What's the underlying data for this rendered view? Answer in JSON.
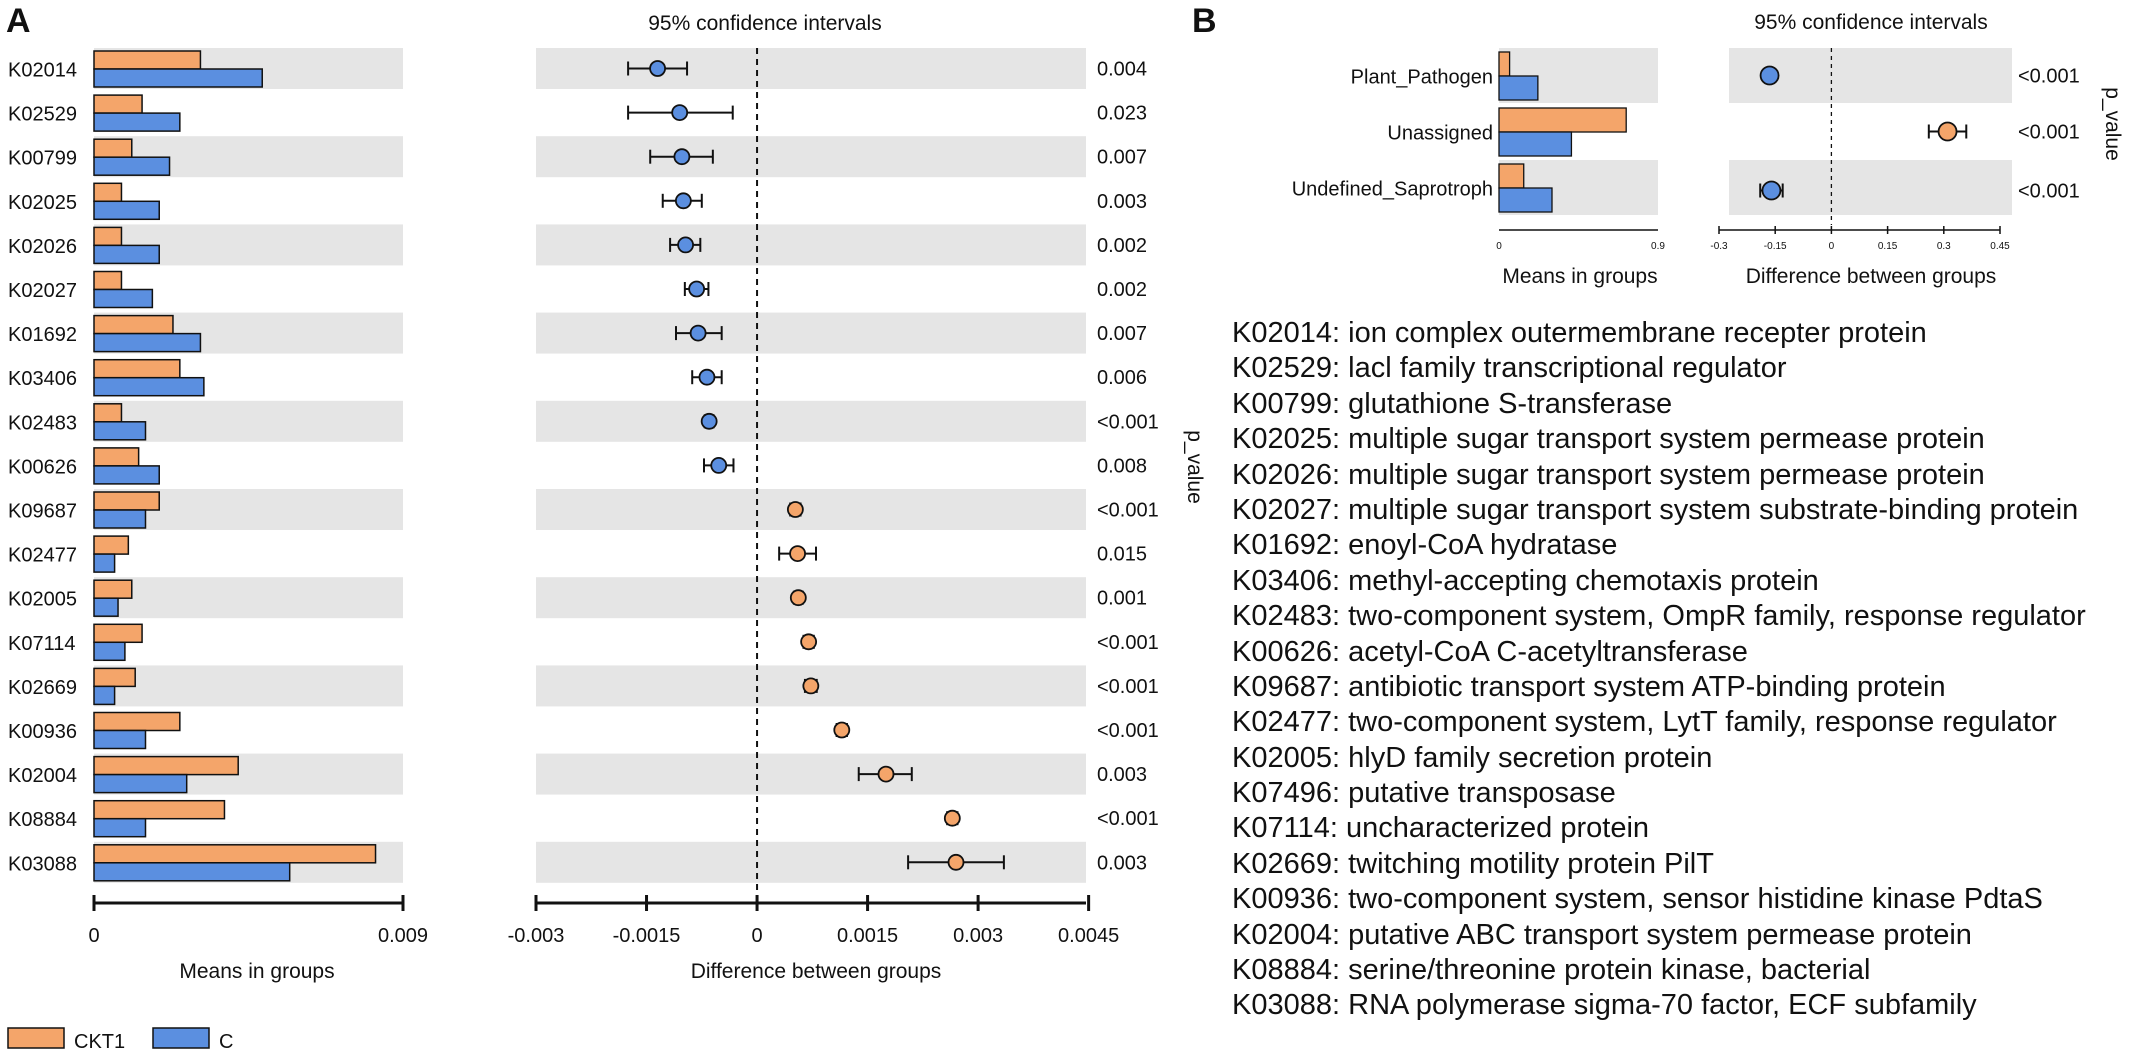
{
  "colors": {
    "ckt1": "#f4a56a",
    "c": "#5b8fe0",
    "band": "#e5e5e5",
    "stroke": "#111111"
  },
  "chart_data": [
    {
      "panel": "A",
      "panel_label": "A",
      "type": "bar",
      "title": "",
      "xlabel": "Means in groups",
      "ylabel": "",
      "xlim": [
        0,
        0.009
      ],
      "xticks": [
        "0",
        "0.009"
      ],
      "categories": [
        "K02014",
        "K02529",
        "K00799",
        "K02025",
        "K02026",
        "K02027",
        "K01692",
        "K03406",
        "K02483",
        "K00626",
        "K09687",
        "K02477",
        "K02005",
        "K07114",
        "K02669",
        "K00936",
        "K02004",
        "K08884",
        "K03088"
      ],
      "series": [
        {
          "name": "CKT1",
          "values": [
            0.0031,
            0.0014,
            0.0011,
            0.0008,
            0.0008,
            0.0008,
            0.0023,
            0.0025,
            0.0008,
            0.0013,
            0.0019,
            0.001,
            0.0011,
            0.0014,
            0.0012,
            0.0025,
            0.0042,
            0.0038,
            0.0082
          ]
        },
        {
          "name": "C",
          "values": [
            0.0049,
            0.0025,
            0.0022,
            0.0019,
            0.0019,
            0.0017,
            0.0031,
            0.0032,
            0.0015,
            0.0019,
            0.0015,
            0.0006,
            0.0007,
            0.0009,
            0.0006,
            0.0015,
            0.0027,
            0.0015,
            0.0057
          ]
        }
      ],
      "legend": [
        "CKT1",
        "C"
      ]
    },
    {
      "panel": "A",
      "type": "scatter",
      "title": "95% confidence intervals",
      "xlabel": "Difference between groups",
      "xlim": [
        -0.003,
        0.0046
      ],
      "xticks": [
        "-0.003",
        "-0.0015",
        "0",
        "0.0015",
        "0.003",
        "0.0045"
      ],
      "p_label": "p_value",
      "points": [
        {
          "id": "K02014",
          "diff": -0.00135,
          "low": -0.00175,
          "high": -0.00095,
          "group": "C",
          "p": "0.004"
        },
        {
          "id": "K02529",
          "diff": -0.00105,
          "low": -0.00175,
          "high": -0.00033,
          "group": "C",
          "p": "0.023"
        },
        {
          "id": "K00799",
          "diff": -0.00102,
          "low": -0.00145,
          "high": -0.0006,
          "group": "C",
          "p": "0.007"
        },
        {
          "id": "K02025",
          "diff": -0.001,
          "low": -0.00128,
          "high": -0.00075,
          "group": "C",
          "p": "0.003"
        },
        {
          "id": "K02026",
          "diff": -0.00097,
          "low": -0.00118,
          "high": -0.00077,
          "group": "C",
          "p": "0.002"
        },
        {
          "id": "K02027",
          "diff": -0.00082,
          "low": -0.00098,
          "high": -0.00066,
          "group": "C",
          "p": "0.002"
        },
        {
          "id": "K01692",
          "diff": -0.0008,
          "low": -0.0011,
          "high": -0.00048,
          "group": "C",
          "p": "0.007"
        },
        {
          "id": "K03406",
          "diff": -0.00068,
          "low": -0.00088,
          "high": -0.00048,
          "group": "C",
          "p": "0.006"
        },
        {
          "id": "K02483",
          "diff": -0.00065,
          "low": -0.00071,
          "high": -0.00059,
          "group": "C",
          "p": "<0.001"
        },
        {
          "id": "K00626",
          "diff": -0.00052,
          "low": -0.00072,
          "high": -0.00032,
          "group": "C",
          "p": "0.008"
        },
        {
          "id": "K09687",
          "diff": 0.00052,
          "low": 0.00045,
          "high": 0.00059,
          "group": "CKT1",
          "p": "<0.001"
        },
        {
          "id": "K02477",
          "diff": 0.00055,
          "low": 0.0003,
          "high": 0.0008,
          "group": "CKT1",
          "p": "0.015"
        },
        {
          "id": "K02005",
          "diff": 0.00056,
          "low": 0.0005,
          "high": 0.00062,
          "group": "CKT1",
          "p": "0.001"
        },
        {
          "id": "K07114",
          "diff": 0.0007,
          "low": 0.00063,
          "high": 0.00077,
          "group": "CKT1",
          "p": "<0.001"
        },
        {
          "id": "K02669",
          "diff": 0.00073,
          "low": 0.00065,
          "high": 0.00081,
          "group": "CKT1",
          "p": "<0.001"
        },
        {
          "id": "K00936",
          "diff": 0.00115,
          "low": 0.00108,
          "high": 0.00122,
          "group": "CKT1",
          "p": "<0.001"
        },
        {
          "id": "K02004",
          "diff": 0.00175,
          "low": 0.00138,
          "high": 0.0021,
          "group": "CKT1",
          "p": "0.003"
        },
        {
          "id": "K08884",
          "diff": 0.00265,
          "low": 0.00258,
          "high": 0.00272,
          "group": "CKT1",
          "p": "<0.001"
        },
        {
          "id": "K03088",
          "diff": 0.0027,
          "low": 0.00205,
          "high": 0.00335,
          "group": "CKT1",
          "p": "0.003"
        }
      ]
    },
    {
      "panel": "B",
      "panel_label": "B",
      "type": "bar",
      "title": "",
      "xlabel": "Means in groups",
      "xlim": [
        0,
        0.9
      ],
      "xticks": [
        "0",
        "0.9"
      ],
      "categories": [
        "Plant_Pathogen",
        "Unassigned",
        "Undefined_Saprotroph"
      ],
      "series": [
        {
          "name": "CKT1",
          "values": [
            0.06,
            0.72,
            0.14
          ]
        },
        {
          "name": "C",
          "values": [
            0.22,
            0.41,
            0.3
          ]
        }
      ]
    },
    {
      "panel": "B",
      "type": "scatter",
      "title": "95% confidence intervals",
      "xlabel": "Difference between groups",
      "xlim": [
        -0.3,
        0.45
      ],
      "xticks": [
        "-0.3",
        "-0.15",
        "0",
        "0.15",
        "0.3",
        "0.45"
      ],
      "p_label": "p_value",
      "points": [
        {
          "id": "Plant_Pathogen",
          "diff": -0.165,
          "low": -0.175,
          "high": -0.155,
          "group": "C",
          "p": "<0.001"
        },
        {
          "id": "Unassigned",
          "diff": 0.31,
          "low": 0.26,
          "high": 0.36,
          "group": "CKT1",
          "p": "<0.001"
        },
        {
          "id": "Undefined_Saprotroph",
          "diff": -0.16,
          "low": -0.19,
          "high": -0.13,
          "group": "C",
          "p": "<0.001"
        }
      ]
    }
  ],
  "descriptions": [
    {
      "id": "K02014",
      "text": "ion complex outermembrane recepter protein"
    },
    {
      "id": "K02529",
      "text": "lacl family transcriptional regulator"
    },
    {
      "id": "K00799",
      "text": "glutathione S-transferase"
    },
    {
      "id": "K02025",
      "text": "multiple sugar transport system permease protein"
    },
    {
      "id": "K02026",
      "text": "multiple sugar transport system permease protein"
    },
    {
      "id": "K02027",
      "text": "multiple sugar transport system substrate-binding protein"
    },
    {
      "id": "K01692",
      "text": "enoyl-CoA hydratase"
    },
    {
      "id": "K03406",
      "text": "methyl-accepting chemotaxis protein"
    },
    {
      "id": "K02483",
      "text": "two-component system, OmpR family, response regulator"
    },
    {
      "id": "K00626",
      "text": "acetyl-CoA C-acetyltransferase"
    },
    {
      "id": "K09687",
      "text": "antibiotic transport system ATP-binding protein"
    },
    {
      "id": "K02477",
      "text": "two-component system, LytT family, response regulator"
    },
    {
      "id": "K02005",
      "text": "hlyD family secretion protein"
    },
    {
      "id": "K07496",
      "text": "putative transposase"
    },
    {
      "id": "K07114",
      "text": "uncharacterized protein"
    },
    {
      "id": "K02669",
      "text": "twitching motility protein PilT"
    },
    {
      "id": "K00936",
      "text": "two-component system, sensor histidine kinase PdtaS"
    },
    {
      "id": "K02004",
      "text": "putative ABC transport system permease protein"
    },
    {
      "id": "K08884",
      "text": "serine/threonine protein kinase, bacterial"
    },
    {
      "id": "K03088",
      "text": "RNA polymerase sigma-70 factor, ECF subfamily"
    }
  ]
}
